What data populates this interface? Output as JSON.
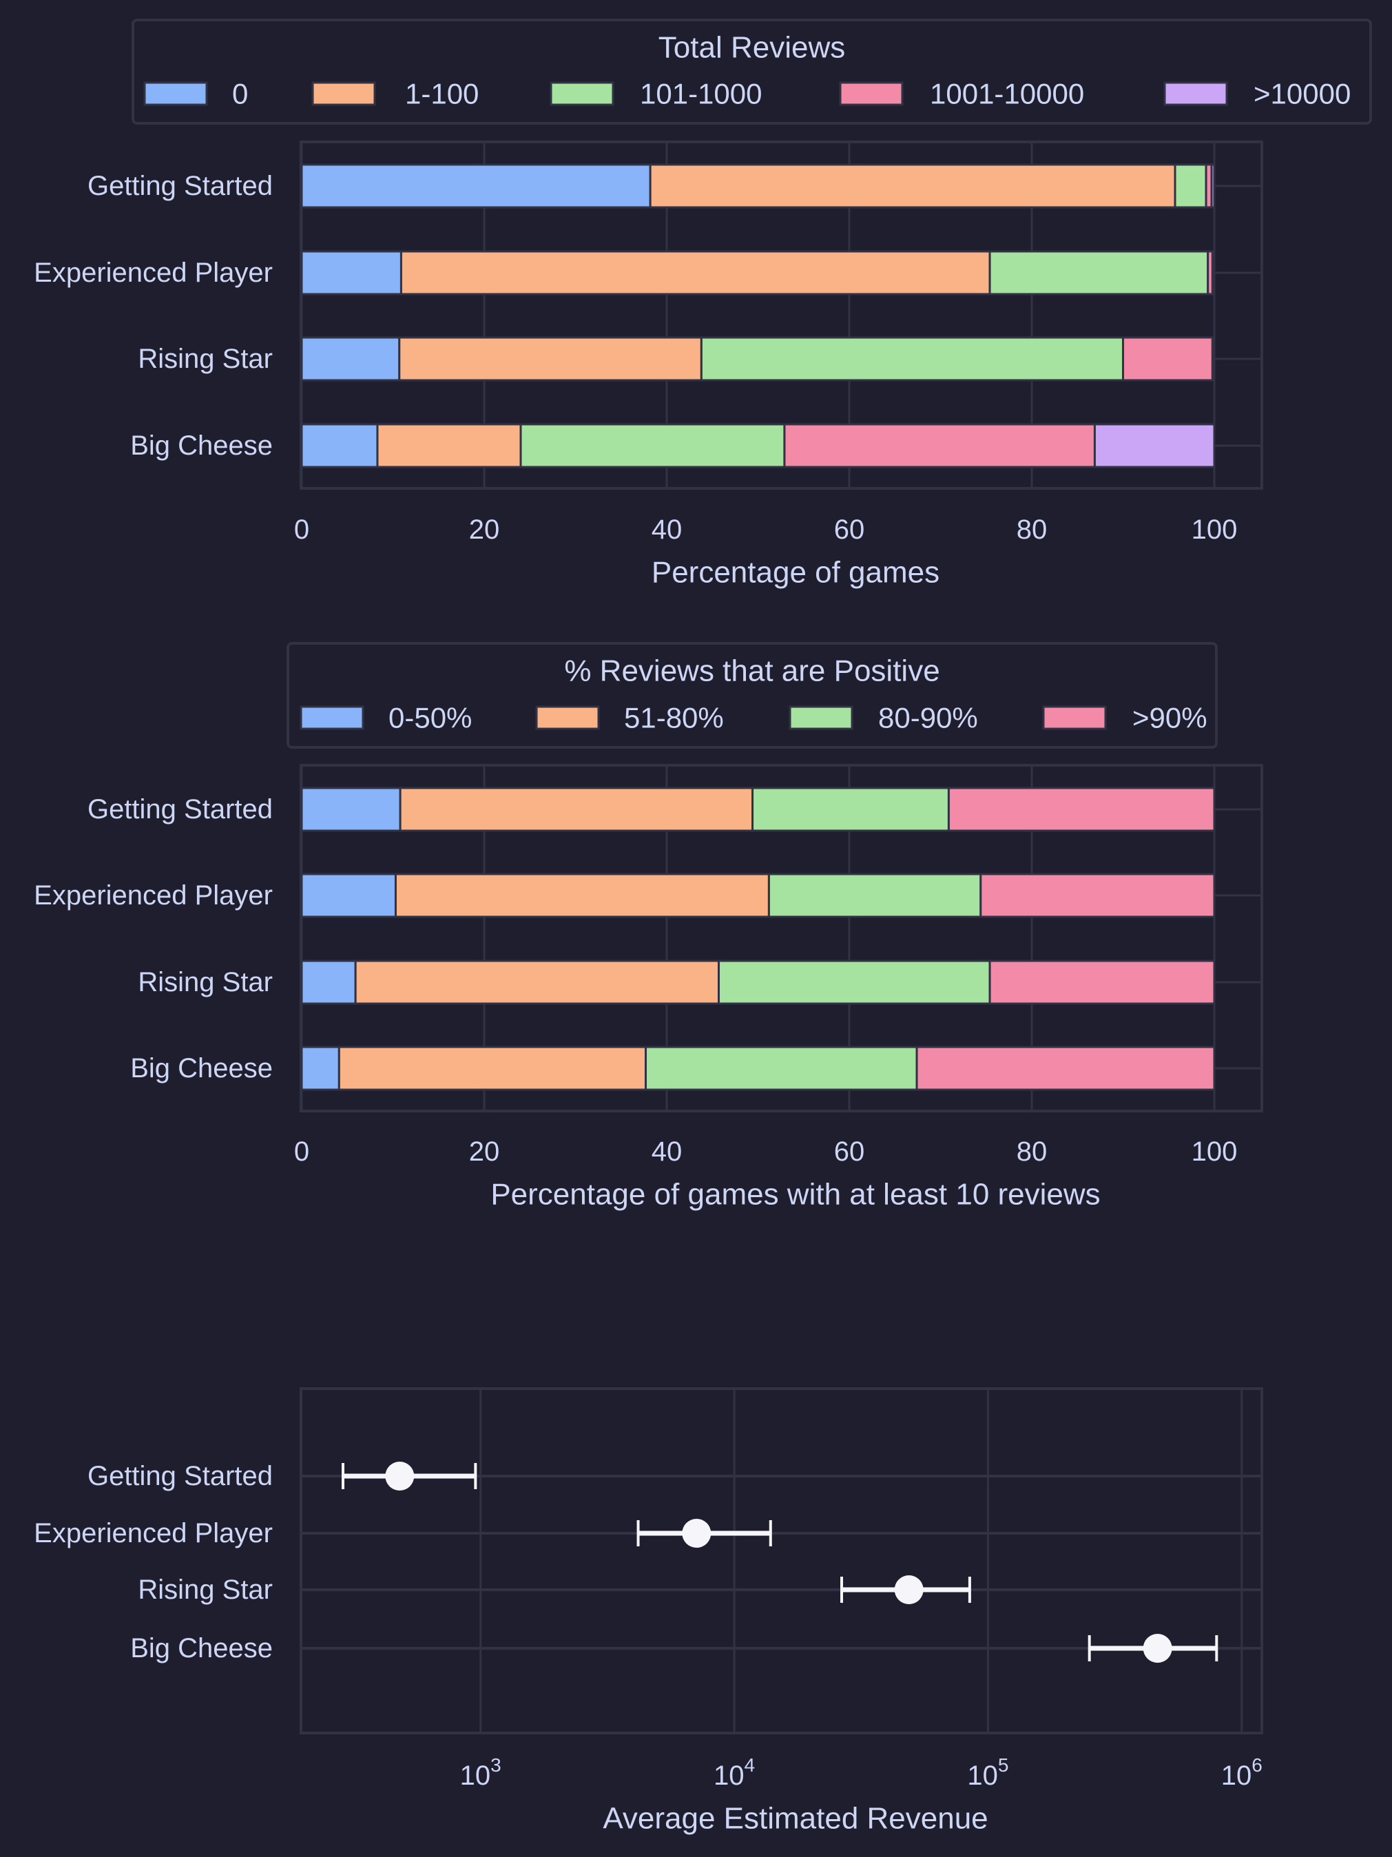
{
  "colors": {
    "background": "#1e1e2e",
    "frame": "#313244",
    "text": "#cdd6f4",
    "marker": "#f5f5fa"
  },
  "chart_data": [
    {
      "type": "bar",
      "orientation": "horizontal",
      "stacked": true,
      "categories": [
        "Getting Started",
        "Experienced Player",
        "Rising Star",
        "Big Cheese"
      ],
      "legend_title": "Total Reviews",
      "legend_placement": "top",
      "series": [
        {
          "name": "0",
          "color": "#89b4fa",
          "values": [
            38.2,
            10.9,
            10.7,
            8.3
          ]
        },
        {
          "name": "1-100",
          "color": "#fab387",
          "values": [
            57.5,
            64.5,
            33.1,
            15.7
          ]
        },
        {
          "name": "101-1000",
          "color": "#a6e3a1",
          "values": [
            3.4,
            23.9,
            46.2,
            28.9
          ]
        },
        {
          "name": "1001-10000",
          "color": "#f38ba8",
          "values": [
            0.6,
            0.5,
            9.8,
            34.0
          ]
        },
        {
          "name": ">10000",
          "color": "#cba6f7",
          "values": [
            0.3,
            0.2,
            0.2,
            13.1
          ]
        }
      ],
      "xlabel": "Percentage of games",
      "ylabel": "",
      "xlim": [
        0,
        105
      ],
      "xticks": [
        0,
        20,
        40,
        60,
        80,
        100
      ],
      "xtick_labels": [
        "0",
        "20",
        "40",
        "60",
        "80",
        "100"
      ],
      "grid": true
    },
    {
      "type": "bar",
      "orientation": "horizontal",
      "stacked": true,
      "categories": [
        "Getting Started",
        "Experienced Player",
        "Rising Star",
        "Big Cheese"
      ],
      "legend_title": "% Reviews that are Positive",
      "legend_placement": "top",
      "series": [
        {
          "name": "0-50%",
          "color": "#89b4fa",
          "values": [
            10.8,
            10.3,
            5.9,
            4.1
          ]
        },
        {
          "name": "51-80%",
          "color": "#fab387",
          "values": [
            38.6,
            40.9,
            39.8,
            33.6
          ]
        },
        {
          "name": "80-90%",
          "color": "#a6e3a1",
          "values": [
            21.5,
            23.2,
            29.7,
            29.7
          ]
        },
        {
          "name": ">90%",
          "color": "#f38ba8",
          "values": [
            29.1,
            25.6,
            24.6,
            32.6
          ]
        }
      ],
      "xlabel": "Percentage of games with at least 10 reviews",
      "ylabel": "",
      "xlim": [
        0,
        105
      ],
      "xticks": [
        0,
        20,
        40,
        60,
        80,
        100
      ],
      "xtick_labels": [
        "0",
        "20",
        "40",
        "60",
        "80",
        "100"
      ],
      "grid": true
    },
    {
      "type": "scatter",
      "subtype": "errorbar",
      "categories": [
        "Getting Started",
        "Experienced Player",
        "Rising Star",
        "Big Cheese"
      ],
      "values": [
        480,
        7100,
        48800,
        466000
      ],
      "error_low": [
        287,
        4180,
        26500,
        251000
      ],
      "error_high": [
        955,
        13900,
        84700,
        796000
      ],
      "xscale": "log",
      "xlim": [
        196,
        1200000
      ],
      "xticks": [
        1000,
        10000,
        100000,
        1000000
      ],
      "xtick_labels": [
        {
          "base": "10",
          "exp": "3"
        },
        {
          "base": "10",
          "exp": "4"
        },
        {
          "base": "10",
          "exp": "5"
        },
        {
          "base": "10",
          "exp": "6"
        }
      ],
      "xlabel": "Average Estimated Revenue",
      "ylabel": "",
      "grid": true
    }
  ]
}
